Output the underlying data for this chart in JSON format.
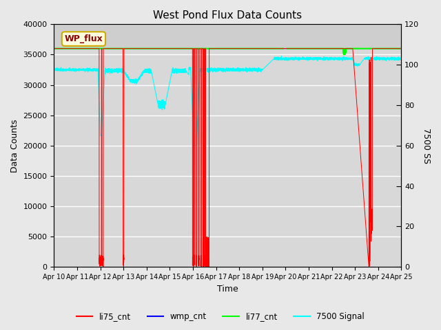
{
  "title": "West Pond Flux Data Counts",
  "xlabel": "Time",
  "ylabel_left": "Data Counts",
  "ylabel_right": "7500 SS",
  "annotation_text": "WP_flux",
  "ylim_left": [
    0,
    40000
  ],
  "ylim_right": [
    0,
    120
  ],
  "fig_facecolor": "#e8e8e8",
  "plot_bg_color": "#e0e0e0",
  "plot_bg_top": "#d0d0d0",
  "grid_color": "white",
  "legend_entries": [
    "li75_cnt",
    "wmp_cnt",
    "li77_cnt",
    "7500 Signal"
  ],
  "legend_colors": [
    "red",
    "blue",
    "lime",
    "cyan"
  ],
  "num_points": 7200,
  "li75_base": 36000,
  "li77_base": 36000,
  "wmp_base": 36000,
  "cyan_ss_base": 98.0,
  "cyan_ss_high": 103.0,
  "right_tick_style": "dash"
}
